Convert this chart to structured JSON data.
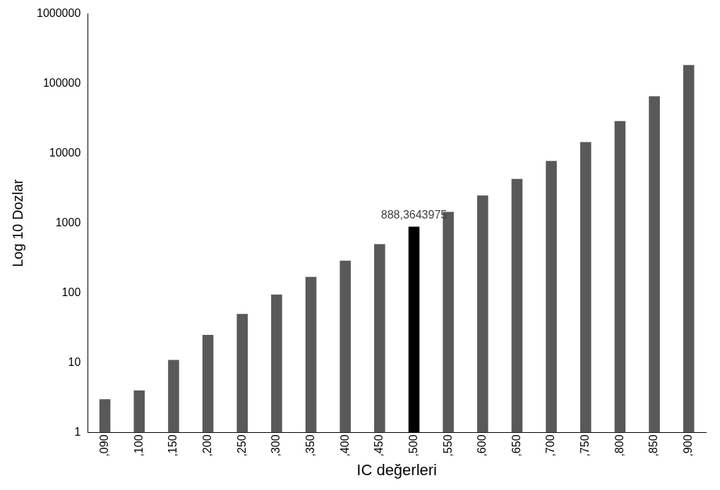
{
  "chart_data": {
    "type": "bar",
    "xlabel": "IC değerleri",
    "ylabel": "Log 10 Dozlar",
    "categories": [
      ",090",
      ",100",
      ",150",
      ",200",
      ",250",
      ",300",
      ",350",
      ",400",
      ",450",
      ",500",
      ",550",
      ",600",
      ",650",
      ",700",
      ",750",
      ",800",
      ",850",
      ",900"
    ],
    "values": [
      3,
      4,
      11,
      25,
      50,
      95,
      170,
      290,
      500,
      888.3643975,
      1450,
      2500,
      4300,
      7800,
      14500,
      29000,
      66000,
      185000
    ],
    "colors": [
      "#595959",
      "#595959",
      "#595959",
      "#595959",
      "#595959",
      "#595959",
      "#595959",
      "#595959",
      "#595959",
      "#000000",
      "#595959",
      "#595959",
      "#595959",
      "#595959",
      "#595959",
      "#595959",
      "#595959",
      "#595959"
    ],
    "value_labels": [
      null,
      null,
      null,
      null,
      null,
      null,
      null,
      null,
      null,
      "888,3643975",
      null,
      null,
      null,
      null,
      null,
      null,
      null,
      null
    ],
    "log": "y",
    "ylim": [
      1,
      1000000
    ],
    "yticks": [
      1,
      10,
      100,
      1000,
      10000,
      100000,
      1000000
    ],
    "grid": false,
    "legend": false
  }
}
